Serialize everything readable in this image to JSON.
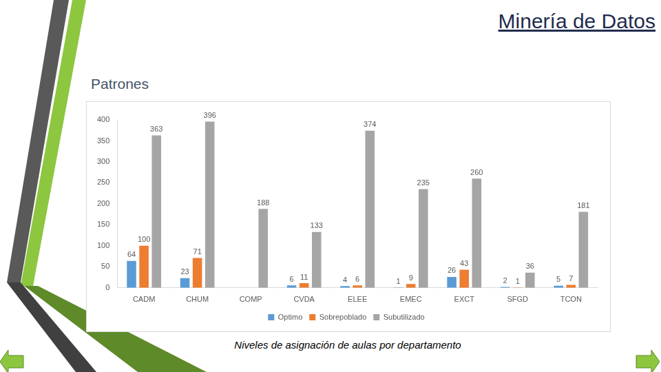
{
  "slide": {
    "title": "Minería de Datos",
    "section": "Patrones",
    "caption": "Niveles de asignación de aulas por departamento"
  },
  "chart_data": {
    "type": "bar",
    "categories": [
      "CADM",
      "CHUM",
      "COMP",
      "CVDA",
      "ELEE",
      "EMEC",
      "EXCT",
      "SFGD",
      "TCON"
    ],
    "series": [
      {
        "name": "Optimo",
        "color": "#5b9bd5",
        "values": [
          64,
          23,
          null,
          6,
          4,
          1,
          26,
          2,
          5
        ]
      },
      {
        "name": "Sobrepoblado",
        "color": "#ed7d31",
        "values": [
          100,
          71,
          null,
          11,
          6,
          9,
          43,
          1,
          7
        ]
      },
      {
        "name": "Subutilizado",
        "color": "#a5a5a5",
        "values": [
          363,
          396,
          188,
          133,
          374,
          235,
          260,
          36,
          181
        ]
      }
    ],
    "ylim": [
      0,
      400
    ],
    "yticks": [
      0,
      50,
      100,
      150,
      200,
      250,
      300,
      350,
      400
    ],
    "grid": false,
    "legend": "bottom",
    "data_labels": true
  }
}
